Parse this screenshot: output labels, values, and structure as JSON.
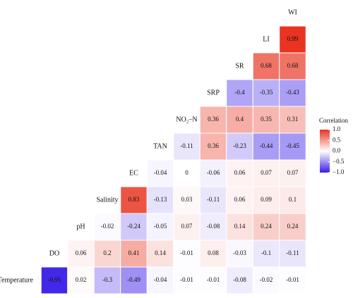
{
  "chart_data": {
    "type": "heatmap",
    "variables": [
      "Temperature",
      "DO",
      "pH",
      "Salinity",
      "EC",
      "TAN",
      "NO₂–N",
      "SRP",
      "SR",
      "LI",
      "WI"
    ],
    "values": [
      [
        -0.95,
        0.02,
        -0.3,
        -0.49,
        -0.04,
        -0.01,
        -0.01,
        -0.08,
        -0.02,
        -0.01
      ],
      [
        null,
        0.06,
        0.2,
        0.41,
        0.14,
        -0.01,
        0.08,
        -0.03,
        -0.1,
        -0.11
      ],
      [
        null,
        null,
        -0.02,
        -0.24,
        -0.05,
        0.07,
        -0.08,
        0.14,
        0.24,
        0.24
      ],
      [
        null,
        null,
        null,
        0.83,
        -0.13,
        0.03,
        -0.11,
        0.06,
        0.09,
        0.1
      ],
      [
        null,
        null,
        null,
        null,
        -0.04,
        0,
        -0.06,
        0.06,
        0.07,
        0.07
      ],
      [
        null,
        null,
        null,
        null,
        null,
        -0.11,
        0.36,
        -0.23,
        -0.44,
        -0.45
      ],
      [
        null,
        null,
        null,
        null,
        null,
        null,
        0.36,
        0.4,
        0.35,
        0.31
      ],
      [
        null,
        null,
        null,
        null,
        null,
        null,
        null,
        -0.4,
        -0.35,
        -0.43
      ],
      [
        null,
        null,
        null,
        null,
        null,
        null,
        null,
        null,
        0.68,
        0.68
      ],
      [
        null,
        null,
        null,
        null,
        null,
        null,
        null,
        null,
        null,
        0.99
      ]
    ],
    "colorscale": {
      "low": "#3a1de8",
      "mid": "#ffffff",
      "high": "#e8321e"
    },
    "clim": [
      -1,
      1
    ],
    "legend_title": "Correlation",
    "cticks": [
      {
        "value": 1,
        "label": "1.0"
      },
      0.5,
      {
        "value": 0,
        "label": "0.0"
      },
      {
        "value": -0.5,
        "label": "−0.5"
      },
      {
        "value": -1,
        "label": "−1.0"
      }
    ]
  }
}
